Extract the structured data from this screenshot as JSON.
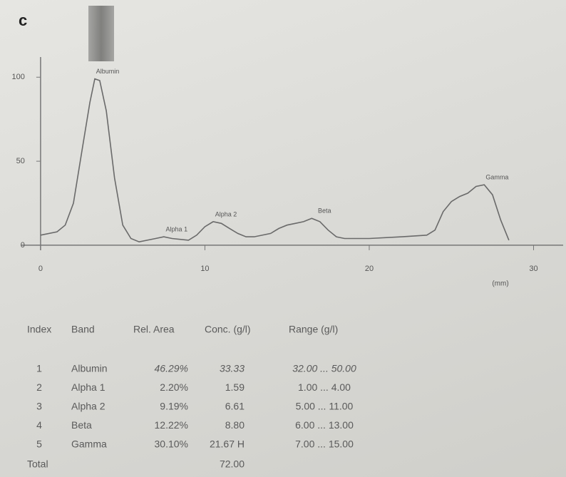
{
  "panel_label": "c",
  "chart_data": {
    "type": "line",
    "color": "#6a6a6a",
    "x": [
      0,
      1,
      1.5,
      2,
      2.5,
      3,
      3.3,
      3.6,
      4,
      4.5,
      5,
      5.5,
      6,
      7,
      7.5,
      8,
      9,
      9.5,
      10,
      10.5,
      11,
      11.5,
      12,
      12.5,
      13,
      14,
      14.5,
      15,
      15.5,
      16,
      16.5,
      17,
      17.5,
      18,
      18.5,
      20,
      22,
      23.5,
      24,
      24.5,
      25,
      25.5,
      26,
      26.5,
      27,
      27.5,
      28,
      28.5
    ],
    "values": [
      6,
      8,
      12,
      25,
      55,
      85,
      99,
      98,
      80,
      40,
      12,
      4,
      2,
      4,
      5,
      4,
      3,
      6,
      11,
      14,
      13,
      10,
      7,
      5,
      5,
      7,
      10,
      12,
      13,
      14,
      16,
      14,
      9,
      5,
      4,
      4,
      5,
      6,
      9,
      20,
      26,
      29,
      31,
      35,
      36,
      30,
      15,
      3
    ],
    "xlim": [
      -0.3,
      31.8
    ],
    "ylim": [
      -3,
      112
    ],
    "xticks": [
      0,
      10,
      20,
      30
    ],
    "yticks": [
      0,
      50,
      100
    ],
    "x_unit": "(mm)",
    "annotations": [
      {
        "text": "Albumin",
        "x": 3.3,
        "y": 99
      },
      {
        "text": "Alpha 1",
        "x": 7.5,
        "y": 5
      },
      {
        "text": "Alpha 2",
        "x": 10.5,
        "y": 14
      },
      {
        "text": "Beta",
        "x": 16.5,
        "y": 16
      },
      {
        "text": "Gamma",
        "x": 27,
        "y": 36
      }
    ]
  },
  "table": {
    "header": [
      "Index",
      "Band",
      "Rel. Area",
      "Conc. (g/l)",
      "Range (g/l)"
    ],
    "rows": [
      [
        "1",
        "Albumin",
        "46.29%",
        "33.33",
        "32.00 ... 50.00"
      ],
      [
        "2",
        "Alpha 1",
        "2.20%",
        "1.59",
        "1.00 ... 4.00"
      ],
      [
        "3",
        "Alpha 2",
        "9.19%",
        "6.61",
        "5.00 ... 11.00"
      ],
      [
        "4",
        "Beta",
        "12.22%",
        "8.80",
        "6.00 ... 13.00"
      ],
      [
        "5",
        "Gamma",
        "30.10%",
        "21.67 H",
        "7.00 ... 15.00"
      ]
    ],
    "total": {
      "label": "Total",
      "conc": "72.00"
    }
  }
}
